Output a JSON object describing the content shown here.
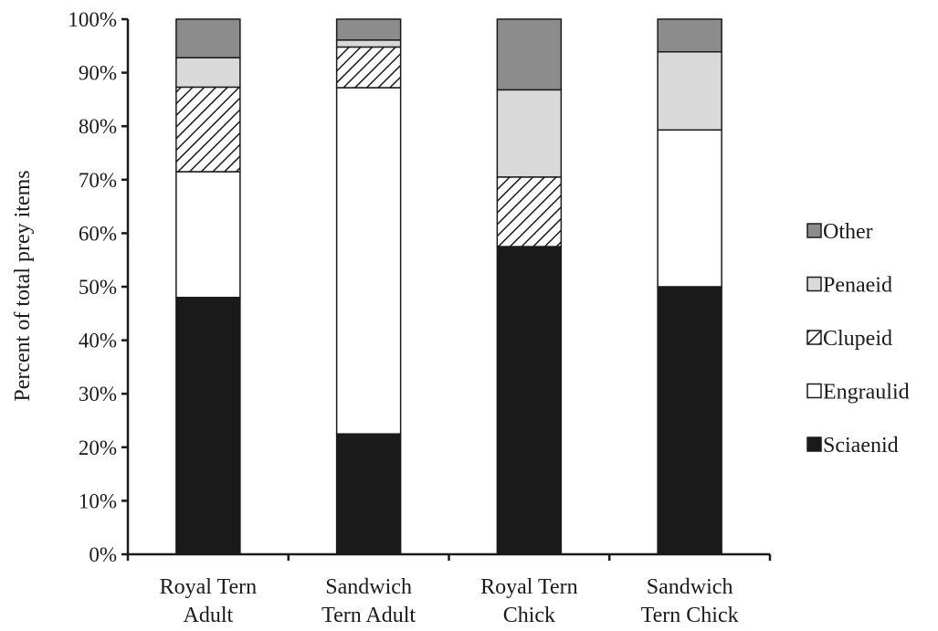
{
  "chart_data": {
    "type": "bar",
    "stacked": true,
    "categories": [
      "Royal Tern Adult",
      "Sandwich Tern Adult",
      "Royal Tern Chick",
      "Sandwich Tern Chick"
    ],
    "category_lines": [
      [
        "Royal Tern",
        "Adult"
      ],
      [
        "Sandwich",
        "Tern Adult"
      ],
      [
        "Royal Tern",
        "Chick"
      ],
      [
        "Sandwich",
        "Tern Chick"
      ]
    ],
    "series": [
      {
        "name": "Sciaenid",
        "fill": "#1a1a1a",
        "pattern": "solid",
        "values": [
          48,
          22.5,
          57.5,
          50
        ]
      },
      {
        "name": "Engraulid",
        "fill": "#ffffff",
        "pattern": "solid",
        "values": [
          23.5,
          64.7,
          0,
          29.3
        ]
      },
      {
        "name": "Clupeid",
        "fill": "#ffffff",
        "pattern": "hatched",
        "values": [
          15.8,
          7.6,
          13,
          0
        ]
      },
      {
        "name": "Penaeid",
        "fill": "#d9d9d9",
        "pattern": "solid",
        "values": [
          5.5,
          1.3,
          16.3,
          14.6
        ]
      },
      {
        "name": "Other",
        "fill": "#8c8c8c",
        "pattern": "solid",
        "values": [
          7.2,
          3.9,
          13.2,
          6.1
        ]
      }
    ],
    "ylabel": "Percent of total prey items",
    "xlabel": "",
    "ylim": [
      0,
      100
    ],
    "yticks": [
      "0%",
      "10%",
      "20%",
      "30%",
      "40%",
      "50%",
      "60%",
      "70%",
      "80%",
      "90%",
      "100%"
    ],
    "legend_order": [
      "Other",
      "Penaeid",
      "Clupeid",
      "Engraulid",
      "Sciaenid"
    ],
    "legend_position": "right",
    "grid": false
  }
}
